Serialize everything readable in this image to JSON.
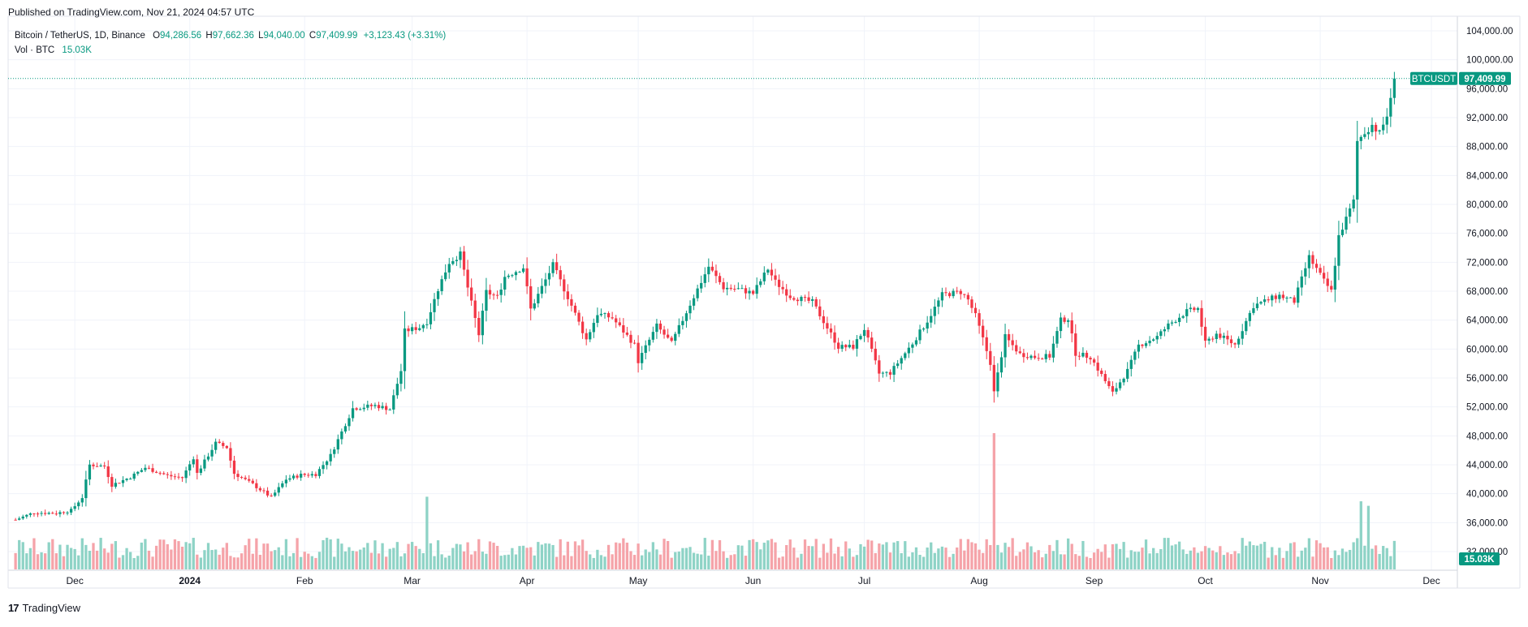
{
  "header": {
    "published": "Published on TradingView.com, Nov 21, 2024 04:57 UTC"
  },
  "legend": {
    "symbol": "Bitcoin / TetherUS, 1D, Binance",
    "o_label": "O",
    "o": "94,286.56",
    "h_label": "H",
    "h": "97,662.36",
    "l_label": "L",
    "l": "94,040.00",
    "c_label": "C",
    "c": "97,409.99",
    "change": "+3,123.43 (+3.31%)",
    "vol_label": "Vol · BTC",
    "vol_value": "15.03K"
  },
  "footer": {
    "logo": "17",
    "brand": "TradingView"
  },
  "colors": {
    "up": "#089981",
    "down": "#F23645",
    "vol_up": "#8ED3C6",
    "vol_down": "#F5A3A9",
    "grid": "#F0F3FA",
    "axis_text": "#131722"
  },
  "chart_data": {
    "type": "candlestick",
    "symbol": "BTCUSDT",
    "last_price": 97409.99,
    "last_price_label": "97,409.99",
    "last_volume_label": "15.03K",
    "ylim": [
      30000,
      105000
    ],
    "y_ticks": [
      32000,
      36000,
      40000,
      44000,
      48000,
      52000,
      56000,
      60000,
      64000,
      68000,
      72000,
      76000,
      80000,
      84000,
      88000,
      92000,
      96000,
      100000,
      104000
    ],
    "y_tick_labels": [
      "32,000.00",
      "36,000.00",
      "40,000.00",
      "44,000.00",
      "48,000.00",
      "52,000.00",
      "56,000.00",
      "60,000.00",
      "64,000.00",
      "68,000.00",
      "72,000.00",
      "76,000.00",
      "80,000.00",
      "84,000.00",
      "88,000.00",
      "92,000.00",
      "96,000.00",
      "100,000.00",
      "104,000.00"
    ],
    "x_ticks": [
      {
        "label": "Dec",
        "date": "2023-12-01"
      },
      {
        "label": "2024",
        "date": "2024-01-01"
      },
      {
        "label": "Feb",
        "date": "2024-02-01"
      },
      {
        "label": "Mar",
        "date": "2024-03-01"
      },
      {
        "label": "Apr",
        "date": "2024-04-01"
      },
      {
        "label": "May",
        "date": "2024-05-01"
      },
      {
        "label": "Jun",
        "date": "2024-06-01"
      },
      {
        "label": "Jul",
        "date": "2024-07-01"
      },
      {
        "label": "Aug",
        "date": "2024-08-01"
      },
      {
        "label": "Sep",
        "date": "2024-09-01"
      },
      {
        "label": "Oct",
        "date": "2024-10-01"
      },
      {
        "label": "Nov",
        "date": "2024-11-01"
      },
      {
        "label": "Dec",
        "date": "2024-12-01"
      }
    ],
    "start_date": "2023-11-15",
    "end_date": "2024-11-21",
    "axis_end_date": "2024-12-08",
    "close_path": [
      [
        "2023-11-15",
        36400
      ],
      [
        "2023-11-20",
        37400
      ],
      [
        "2023-11-26",
        37300
      ],
      [
        "2023-11-30",
        37700
      ],
      [
        "2023-12-03",
        39500
      ],
      [
        "2023-12-05",
        44000
      ],
      [
        "2023-12-09",
        43800
      ],
      [
        "2023-12-11",
        41200
      ],
      [
        "2023-12-16",
        42300
      ],
      [
        "2023-12-20",
        43600
      ],
      [
        "2023-12-26",
        42500
      ],
      [
        "2023-12-30",
        42200
      ],
      [
        "2024-01-02",
        45000
      ],
      [
        "2024-01-03",
        42800
      ],
      [
        "2024-01-08",
        47000
      ],
      [
        "2024-01-11",
        46400
      ],
      [
        "2024-01-13",
        42800
      ],
      [
        "2024-01-18",
        41300
      ],
      [
        "2024-01-23",
        39500
      ],
      [
        "2024-01-27",
        42000
      ],
      [
        "2024-01-31",
        42600
      ],
      [
        "2024-02-04",
        42700
      ],
      [
        "2024-02-08",
        45300
      ],
      [
        "2024-02-14",
        51800
      ],
      [
        "2024-02-20",
        52200
      ],
      [
        "2024-02-24",
        51700
      ],
      [
        "2024-02-27",
        57000
      ],
      [
        "2024-02-28",
        62500
      ],
      [
        "2024-03-03",
        63000
      ],
      [
        "2024-03-05",
        63800
      ],
      [
        "2024-03-08",
        68300
      ],
      [
        "2024-03-11",
        72000
      ],
      [
        "2024-03-14",
        73100
      ],
      [
        "2024-03-16",
        68500
      ],
      [
        "2024-03-19",
        62000
      ],
      [
        "2024-03-21",
        67900
      ],
      [
        "2024-03-24",
        67200
      ],
      [
        "2024-03-26",
        70000
      ],
      [
        "2024-03-31",
        71300
      ],
      [
        "2024-04-02",
        65500
      ],
      [
        "2024-04-08",
        71600
      ],
      [
        "2024-04-12",
        67200
      ],
      [
        "2024-04-17",
        61300
      ],
      [
        "2024-04-20",
        64900
      ],
      [
        "2024-04-24",
        64300
      ],
      [
        "2024-04-30",
        60600
      ],
      [
        "2024-05-01",
        58300
      ],
      [
        "2024-05-06",
        63200
      ],
      [
        "2024-05-10",
        60800
      ],
      [
        "2024-05-15",
        66200
      ],
      [
        "2024-05-20",
        71400
      ],
      [
        "2024-05-24",
        68500
      ],
      [
        "2024-05-28",
        68300
      ],
      [
        "2024-06-01",
        67700
      ],
      [
        "2024-06-05",
        71100
      ],
      [
        "2024-06-07",
        69300
      ],
      [
        "2024-06-11",
        67300
      ],
      [
        "2024-06-17",
        66500
      ],
      [
        "2024-06-24",
        60300
      ],
      [
        "2024-06-28",
        60300
      ],
      [
        "2024-07-01",
        62800
      ],
      [
        "2024-07-05",
        56600
      ],
      [
        "2024-07-08",
        56700
      ],
      [
        "2024-07-14",
        60800
      ],
      [
        "2024-07-18",
        63900
      ],
      [
        "2024-07-22",
        67500
      ],
      [
        "2024-07-27",
        67900
      ],
      [
        "2024-07-29",
        66800
      ],
      [
        "2024-07-31",
        64600
      ],
      [
        "2024-08-02",
        61400
      ],
      [
        "2024-08-04",
        58100
      ],
      [
        "2024-08-05",
        54000
      ],
      [
        "2024-08-08",
        61700
      ],
      [
        "2024-08-12",
        59300
      ],
      [
        "2024-08-16",
        58900
      ],
      [
        "2024-08-20",
        59000
      ],
      [
        "2024-08-23",
        64000
      ],
      [
        "2024-08-25",
        64200
      ],
      [
        "2024-08-27",
        59400
      ],
      [
        "2024-08-31",
        58900
      ],
      [
        "2024-09-06",
        53900
      ],
      [
        "2024-09-10",
        57000
      ],
      [
        "2024-09-13",
        60500
      ],
      [
        "2024-09-18",
        61700
      ],
      [
        "2024-09-21",
        63300
      ],
      [
        "2024-09-26",
        65200
      ],
      [
        "2024-09-29",
        65600
      ],
      [
        "2024-10-01",
        60800
      ],
      [
        "2024-10-04",
        62100
      ],
      [
        "2024-10-09",
        60600
      ],
      [
        "2024-10-14",
        66000
      ],
      [
        "2024-10-21",
        67400
      ],
      [
        "2024-10-25",
        66600
      ],
      [
        "2024-10-29",
        72700
      ],
      [
        "2024-11-02",
        69400
      ],
      [
        "2024-11-04",
        68000
      ],
      [
        "2024-11-06",
        75600
      ],
      [
        "2024-11-10",
        80400
      ],
      [
        "2024-11-11",
        88700
      ],
      [
        "2024-11-13",
        90000
      ],
      [
        "2024-11-15",
        91000
      ],
      [
        "2024-11-17",
        89800
      ],
      [
        "2024-11-19",
        92300
      ],
      [
        "2024-11-20",
        94300
      ],
      [
        "2024-11-21",
        97410
      ]
    ],
    "volume_spikes": [
      {
        "date": "2024-03-05",
        "value": 3.2
      },
      {
        "date": "2024-08-05",
        "value": 6.0
      },
      {
        "date": "2024-11-12",
        "value": 3.0
      },
      {
        "date": "2024-11-14",
        "value": 2.8
      }
    ]
  }
}
